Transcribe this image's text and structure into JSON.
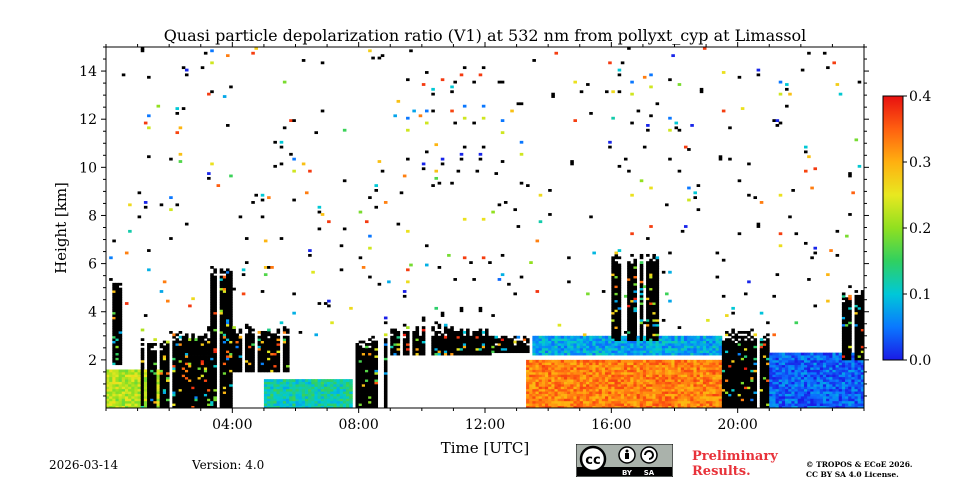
{
  "chart_data": {
    "type": "heatmap",
    "title": "Quasi particle depolarization ratio (V1) at 532 nm from pollyxt_cyp at Limassol",
    "xlabel": "Time [UTC]",
    "ylabel": "Height [km]",
    "xlim": [
      0,
      24
    ],
    "ylim": [
      0,
      15
    ],
    "xticks": [
      {
        "v": 4,
        "label": "04:00"
      },
      {
        "v": 8,
        "label": "08:00"
      },
      {
        "v": 12,
        "label": "12:00"
      },
      {
        "v": 16,
        "label": "16:00"
      },
      {
        "v": 20,
        "label": "20:00"
      }
    ],
    "yticks": [
      {
        "v": 2,
        "label": "2"
      },
      {
        "v": 4,
        "label": "4"
      },
      {
        "v": 6,
        "label": "6"
      },
      {
        "v": 8,
        "label": "8"
      },
      {
        "v": 10,
        "label": "10"
      },
      {
        "v": 12,
        "label": "12"
      },
      {
        "v": 14,
        "label": "14"
      }
    ],
    "colorbar": {
      "min": 0.0,
      "max": 0.4,
      "ticks": [
        {
          "v": 0.0,
          "label": "0.0"
        },
        {
          "v": 0.1,
          "label": "0.1"
        },
        {
          "v": 0.2,
          "label": "0.2"
        },
        {
          "v": 0.3,
          "label": "0.3"
        },
        {
          "v": 0.4,
          "label": "0.4"
        }
      ],
      "colormap": [
        "#1a1ae6",
        "#0a78ff",
        "#00c8d8",
        "#30d060",
        "#90e020",
        "#e8e820",
        "#ffb010",
        "#ff6010",
        "#e81010"
      ]
    },
    "layers": [
      {
        "name": "surface-aerosol",
        "t0": 0.0,
        "t1": 1.8,
        "h0": 0.0,
        "h1": 1.6,
        "value": 0.22
      },
      {
        "name": "surface-aerosol",
        "t0": 5.0,
        "t1": 7.8,
        "h0": 0.0,
        "h1": 1.2,
        "value": 0.12
      },
      {
        "name": "surface-dust",
        "t0": 13.3,
        "t1": 19.8,
        "h0": 0.0,
        "h1": 2.0,
        "value": 0.33
      },
      {
        "name": "marine-layer",
        "t0": 21.0,
        "t1": 24.0,
        "h0": 0.0,
        "h1": 2.3,
        "value": 0.04
      },
      {
        "name": "aerosol-top",
        "t0": 13.5,
        "t1": 19.5,
        "h0": 2.2,
        "h1": 3.0,
        "value": 0.08
      }
    ],
    "clouds": [
      {
        "t0": 0.0,
        "t1": 0.5,
        "h0": 1.8,
        "h1": 5.5
      },
      {
        "t0": 1.1,
        "t1": 2.0,
        "h0": 0.0,
        "h1": 3.0
      },
      {
        "t0": 2.0,
        "t1": 3.5,
        "h0": 0.0,
        "h1": 3.3
      },
      {
        "t0": 3.3,
        "t1": 4.0,
        "h0": 0.0,
        "h1": 6.0
      },
      {
        "t0": 4.0,
        "t1": 5.8,
        "h0": 1.5,
        "h1": 3.5
      },
      {
        "t0": 7.9,
        "t1": 9.0,
        "h0": 0.0,
        "h1": 3.0
      },
      {
        "t0": 9.0,
        "t1": 12.2,
        "h0": 2.2,
        "h1": 3.5
      },
      {
        "t0": 12.2,
        "t1": 13.5,
        "h0": 2.3,
        "h1": 3.2
      },
      {
        "t0": 16.0,
        "t1": 17.5,
        "h0": 2.8,
        "h1": 6.5
      },
      {
        "t0": 19.5,
        "t1": 21.0,
        "h0": 0.0,
        "h1": 3.3
      },
      {
        "t0": 23.3,
        "t1": 24.0,
        "h0": 2.0,
        "h1": 5.0
      }
    ]
  },
  "footer": {
    "date": "2026-03-14",
    "version": "Version: 4.0",
    "preliminary": [
      "Preliminary",
      "Results."
    ],
    "copyright": [
      "© TROPOS & ECoE 2026.",
      "CC BY SA 4.0 License."
    ],
    "license_badge": {
      "cc": "cc",
      "by": "BY",
      "sa": "SA"
    }
  }
}
